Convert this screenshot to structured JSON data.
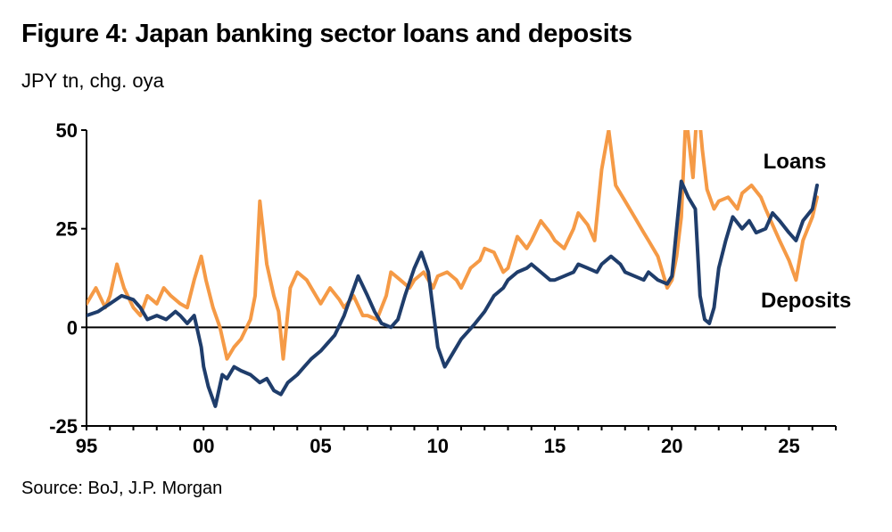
{
  "header": {
    "title": "Figure 4: Japan banking sector loans and deposits",
    "subtitle": "JPY tn, chg. oya"
  },
  "footer": {
    "source": "Source: BoJ, J.P. Morgan"
  },
  "chart_data": {
    "type": "line",
    "title": "Figure 4: Japan banking sector loans and deposits",
    "ylabel": "JPY tn, chg. oya",
    "xlabel": "",
    "xlim": [
      1995,
      2027
    ],
    "ylim": [
      -25,
      50
    ],
    "x_ticks": [
      1995,
      2000,
      2005,
      2010,
      2015,
      2020,
      2025
    ],
    "x_tick_labels": [
      "95",
      "00",
      "05",
      "10",
      "15",
      "20",
      "25"
    ],
    "y_ticks": [
      -25,
      0,
      25,
      50
    ],
    "y_tick_labels": [
      "-25",
      "0",
      "25",
      "50"
    ],
    "grid": false,
    "legend": "inline labels",
    "colors": {
      "Loans": "#1f3d6b",
      "Deposits": "#f59a46"
    },
    "series": [
      {
        "name": "Loans",
        "x": [
          1995,
          1995.5,
          1996,
          1996.5,
          1997,
          1997.3,
          1997.6,
          1998,
          1998.4,
          1998.8,
          1999,
          1999.3,
          1999.6,
          1999.9,
          2000,
          2000.2,
          2000.5,
          2000.8,
          2001,
          2001.3,
          2001.6,
          2002,
          2002.4,
          2002.7,
          2003,
          2003.3,
          2003.6,
          2004,
          2004.3,
          2004.6,
          2005,
          2005.3,
          2005.6,
          2006,
          2006.3,
          2006.6,
          2007,
          2007.3,
          2007.6,
          2008,
          2008.3,
          2008.6,
          2009,
          2009.3,
          2009.6,
          2010,
          2010.3,
          2010.6,
          2011,
          2011.3,
          2011.6,
          2012,
          2012.4,
          2012.8,
          2013,
          2013.4,
          2013.8,
          2014,
          2014.4,
          2014.8,
          2015,
          2015.4,
          2015.8,
          2016,
          2016.4,
          2016.8,
          2017,
          2017.4,
          2017.8,
          2018,
          2018.4,
          2018.8,
          2019,
          2019.4,
          2019.8,
          2020,
          2020.2,
          2020.4,
          2020.7,
          2021,
          2021.2,
          2021.4,
          2021.6,
          2021.8,
          2022,
          2022.3,
          2022.6,
          2023,
          2023.3,
          2023.6,
          2024,
          2024.3,
          2024.6,
          2025,
          2025.3,
          2025.6,
          2026,
          2026.2
        ],
        "values": [
          3,
          4,
          6,
          8,
          7,
          5,
          2,
          3,
          2,
          4,
          3,
          1,
          3,
          -5,
          -10,
          -15,
          -20,
          -12,
          -13,
          -10,
          -11,
          -12,
          -14,
          -13,
          -16,
          -17,
          -14,
          -12,
          -10,
          -8,
          -6,
          -4,
          -2,
          3,
          8,
          13,
          8,
          4,
          1,
          0,
          2,
          8,
          15,
          19,
          14,
          -5,
          -10,
          -7,
          -3,
          -1,
          1,
          4,
          8,
          10,
          12,
          14,
          15,
          16,
          14,
          12,
          12,
          13,
          14,
          16,
          15,
          14,
          16,
          18,
          16,
          14,
          13,
          12,
          14,
          12,
          11,
          13,
          25,
          37,
          33,
          30,
          8,
          2,
          1,
          5,
          15,
          22,
          28,
          25,
          27,
          24,
          25,
          29,
          27,
          24,
          22,
          27,
          30,
          36
        ]
      },
      {
        "name": "Deposits",
        "x": [
          1995,
          1995.4,
          1995.8,
          1996,
          1996.3,
          1996.6,
          1997,
          1997.3,
          1997.6,
          1998,
          1998.3,
          1998.6,
          1999,
          1999.3,
          1999.6,
          1999.9,
          2000.1,
          2000.4,
          2000.7,
          2001,
          2001.3,
          2001.6,
          2002,
          2002.2,
          2002.4,
          2002.7,
          2003,
          2003.2,
          2003.4,
          2003.7,
          2004,
          2004.4,
          2004.8,
          2005,
          2005.4,
          2005.8,
          2006,
          2006.4,
          2006.8,
          2007,
          2007.4,
          2007.8,
          2008,
          2008.4,
          2008.8,
          2009,
          2009.4,
          2009.8,
          2010,
          2010.4,
          2010.8,
          2011,
          2011.4,
          2011.8,
          2012,
          2012.4,
          2012.8,
          2013,
          2013.4,
          2013.8,
          2014,
          2014.4,
          2014.8,
          2015,
          2015.4,
          2015.8,
          2016,
          2016.4,
          2016.7,
          2017,
          2017.3,
          2017.6,
          2018,
          2018.4,
          2018.8,
          2019,
          2019.4,
          2019.8,
          2020,
          2020.2,
          2020.4,
          2020.6,
          2020.9,
          2021.1,
          2021.3,
          2021.5,
          2021.8,
          2022,
          2022.4,
          2022.8,
          2023,
          2023.4,
          2023.8,
          2024,
          2024.3,
          2024.6,
          2025,
          2025.3,
          2025.6,
          2026,
          2026.2
        ],
        "values": [
          6,
          10,
          5,
          8,
          16,
          10,
          5,
          3,
          8,
          6,
          10,
          8,
          6,
          5,
          12,
          18,
          12,
          5,
          0,
          -8,
          -5,
          -3,
          2,
          8,
          32,
          16,
          8,
          4,
          -8,
          10,
          14,
          12,
          8,
          6,
          10,
          7,
          5,
          8,
          3,
          3,
          2,
          8,
          14,
          12,
          10,
          12,
          14,
          10,
          13,
          14,
          12,
          10,
          15,
          17,
          20,
          19,
          14,
          15,
          23,
          20,
          22,
          27,
          24,
          22,
          20,
          25,
          29,
          26,
          22,
          40,
          50,
          36,
          32,
          28,
          24,
          22,
          18,
          10,
          12,
          18,
          28,
          54,
          38,
          58,
          45,
          35,
          30,
          32,
          33,
          30,
          34,
          36,
          33,
          30,
          26,
          22,
          17,
          12,
          22,
          28,
          33
        ]
      }
    ],
    "annotations": [
      "Loans",
      "Deposits"
    ]
  }
}
